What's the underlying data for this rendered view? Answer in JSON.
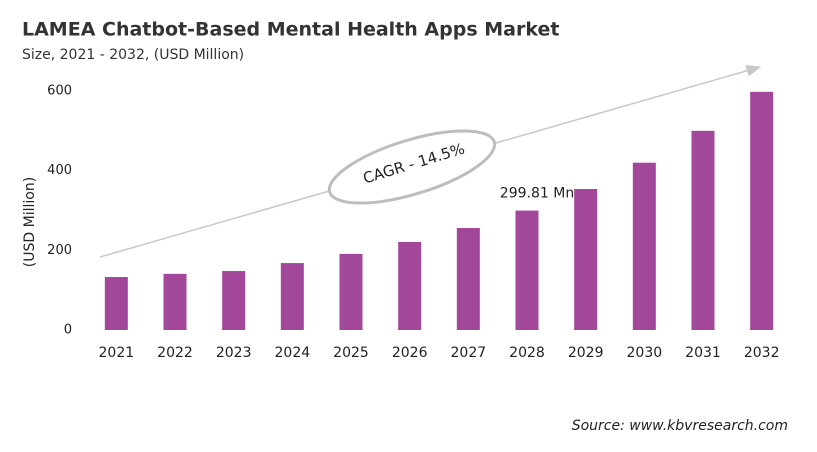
{
  "chart_data": {
    "type": "bar",
    "title": "LAMEA Chatbot-Based  Mental Health Apps Market",
    "subtitle": "Size, 2021 - 2032, (USD Million)",
    "y_label": "(USD Million)",
    "categories": [
      "2021",
      "2022",
      "2023",
      "2024",
      "2025",
      "2026",
      "2027",
      "2028",
      "2029",
      "2030",
      "2031",
      "2032"
    ],
    "values": [
      133,
      141,
      148,
      168,
      191,
      221,
      256,
      299.81,
      354,
      420,
      500,
      598
    ],
    "value_labels": [
      null,
      null,
      null,
      null,
      null,
      null,
      null,
      "299.81 Mn",
      null,
      null,
      null,
      null
    ],
    "color": "#a3479b",
    "ylim": [
      0,
      600
    ],
    "yticks": [
      0,
      200,
      400,
      600
    ],
    "grid": false,
    "annotation": "CAGR - 14.5%",
    "source": "Source: www.kbvresearch.com"
  }
}
